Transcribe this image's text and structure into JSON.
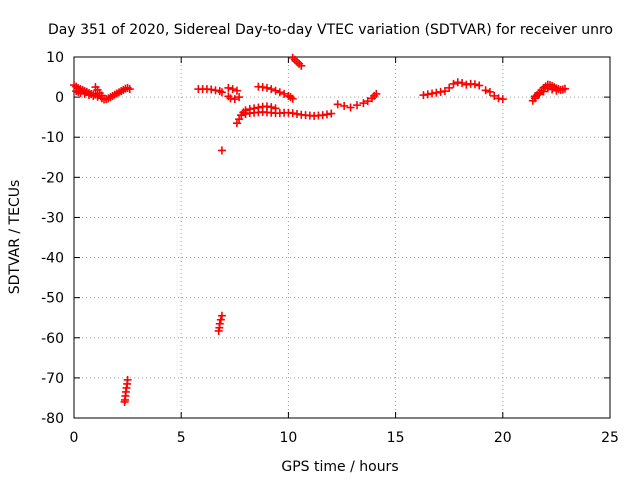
{
  "chart_data": {
    "type": "scatter",
    "title": "Day 351 of 2020, Sidereal Day-to-day VTEC variation (SDTVAR) for receiver unro",
    "xlabel": "GPS time / hours",
    "ylabel": "SDTVAR / TECUs",
    "xlim": [
      0,
      25
    ],
    "ylim": [
      -80,
      10
    ],
    "xticks": [
      0,
      5,
      10,
      15,
      20,
      25
    ],
    "yticks": [
      -80,
      -70,
      -60,
      -50,
      -40,
      -30,
      -20,
      -10,
      0,
      10
    ],
    "grid": true,
    "marker": "plus",
    "marker_color": "#ff0000",
    "series": [
      {
        "name": "SDTVAR",
        "points": [
          [
            0.0,
            3.0
          ],
          [
            0.1,
            2.6
          ],
          [
            0.2,
            2.2
          ],
          [
            0.3,
            2.0
          ],
          [
            0.4,
            1.8
          ],
          [
            0.5,
            1.5
          ],
          [
            0.6,
            1.3
          ],
          [
            0.7,
            1.0
          ],
          [
            0.8,
            0.8
          ],
          [
            0.9,
            0.7
          ],
          [
            1.0,
            0.6
          ],
          [
            0.1,
            1.5
          ],
          [
            0.2,
            1.3
          ],
          [
            0.3,
            1.0
          ],
          [
            0.5,
            0.8
          ],
          [
            0.7,
            0.5
          ],
          [
            0.9,
            0.3
          ],
          [
            1.1,
            0.1
          ],
          [
            1.0,
            2.5
          ],
          [
            1.1,
            1.8
          ],
          [
            1.2,
            1.0
          ],
          [
            1.3,
            0.4
          ],
          [
            1.3,
            -0.3
          ],
          [
            1.4,
            -0.6
          ],
          [
            1.5,
            -0.5
          ],
          [
            1.6,
            -0.3
          ],
          [
            1.7,
            0.0
          ],
          [
            1.8,
            0.3
          ],
          [
            1.9,
            0.6
          ],
          [
            2.0,
            0.9
          ],
          [
            2.1,
            1.2
          ],
          [
            2.2,
            1.5
          ],
          [
            2.3,
            1.8
          ],
          [
            2.4,
            2.1
          ],
          [
            2.5,
            2.3
          ],
          [
            2.6,
            2.0
          ],
          [
            2.5,
            -70.5
          ],
          [
            2.48,
            -71.5
          ],
          [
            2.45,
            -72.5
          ],
          [
            2.42,
            -73.5
          ],
          [
            2.4,
            -74.5
          ],
          [
            2.38,
            -75.5
          ],
          [
            2.36,
            -76.0
          ],
          [
            5.8,
            2.0
          ],
          [
            6.0,
            2.0
          ],
          [
            6.2,
            2.0
          ],
          [
            6.4,
            1.9
          ],
          [
            6.6,
            1.7
          ],
          [
            6.8,
            1.5
          ],
          [
            6.9,
            1.2
          ],
          [
            6.9,
            -13.3
          ],
          [
            6.9,
            -54.5
          ],
          [
            6.85,
            -55.5
          ],
          [
            6.8,
            -56.5
          ],
          [
            6.78,
            -57.5
          ],
          [
            6.75,
            -58.3
          ],
          [
            7.2,
            2.3
          ],
          [
            7.4,
            2.0
          ],
          [
            7.6,
            1.6
          ],
          [
            7.2,
            0.2
          ],
          [
            7.3,
            -0.3
          ],
          [
            7.5,
            -0.5
          ],
          [
            7.7,
            0.0
          ],
          [
            7.6,
            -6.5
          ],
          [
            7.7,
            -5.5
          ],
          [
            7.8,
            -4.5
          ],
          [
            7.9,
            -3.8
          ],
          [
            8.0,
            -3.3
          ],
          [
            8.2,
            -3.0
          ],
          [
            8.4,
            -2.8
          ],
          [
            8.6,
            -2.6
          ],
          [
            8.8,
            -2.4
          ],
          [
            9.0,
            -2.3
          ],
          [
            9.2,
            -2.5
          ],
          [
            9.4,
            -2.8
          ],
          [
            7.8,
            -4.5
          ],
          [
            8.0,
            -4.2
          ],
          [
            8.2,
            -4.0
          ],
          [
            8.4,
            -3.9
          ],
          [
            8.6,
            -3.8
          ],
          [
            8.8,
            -3.7
          ],
          [
            9.0,
            -3.8
          ],
          [
            9.2,
            -3.9
          ],
          [
            9.4,
            -4.0
          ],
          [
            9.6,
            -4.0
          ],
          [
            9.8,
            -3.9
          ],
          [
            10.0,
            -3.9
          ],
          [
            10.2,
            -4.0
          ],
          [
            10.4,
            -4.2
          ],
          [
            10.6,
            -4.4
          ],
          [
            10.8,
            -4.5
          ],
          [
            11.0,
            -4.6
          ],
          [
            11.2,
            -4.7
          ],
          [
            11.4,
            -4.6
          ],
          [
            11.6,
            -4.5
          ],
          [
            11.8,
            -4.3
          ],
          [
            12.0,
            -4.1
          ],
          [
            8.6,
            2.6
          ],
          [
            8.8,
            2.5
          ],
          [
            9.0,
            2.3
          ],
          [
            9.2,
            2.0
          ],
          [
            9.4,
            1.6
          ],
          [
            9.6,
            1.2
          ],
          [
            9.8,
            0.8
          ],
          [
            10.0,
            0.3
          ],
          [
            10.1,
            0.0
          ],
          [
            10.2,
            -0.4
          ],
          [
            10.2,
            9.8
          ],
          [
            10.3,
            9.3
          ],
          [
            10.4,
            8.8
          ],
          [
            10.5,
            8.3
          ],
          [
            10.6,
            7.8
          ],
          [
            12.3,
            -1.8
          ],
          [
            12.6,
            -2.2
          ],
          [
            12.9,
            -2.6
          ],
          [
            13.2,
            -2.0
          ],
          [
            13.5,
            -1.5
          ],
          [
            13.7,
            -1.0
          ],
          [
            13.9,
            -0.3
          ],
          [
            14.0,
            0.3
          ],
          [
            14.1,
            0.8
          ],
          [
            16.3,
            0.5
          ],
          [
            16.5,
            0.7
          ],
          [
            16.7,
            0.9
          ],
          [
            16.9,
            1.1
          ],
          [
            17.1,
            1.3
          ],
          [
            17.3,
            1.5
          ],
          [
            17.5,
            2.3
          ],
          [
            17.7,
            3.3
          ],
          [
            17.9,
            3.7
          ],
          [
            18.1,
            3.5
          ],
          [
            18.3,
            3.1
          ],
          [
            18.5,
            3.3
          ],
          [
            18.7,
            3.2
          ],
          [
            18.9,
            2.9
          ],
          [
            19.2,
            1.7
          ],
          [
            19.4,
            1.3
          ],
          [
            19.6,
            0.3
          ],
          [
            19.8,
            -0.3
          ],
          [
            20.0,
            -0.5
          ],
          [
            21.4,
            -0.9
          ],
          [
            21.5,
            -0.3
          ],
          [
            21.6,
            0.5
          ],
          [
            21.7,
            1.1
          ],
          [
            21.8,
            1.7
          ],
          [
            21.9,
            2.3
          ],
          [
            22.0,
            2.7
          ],
          [
            22.1,
            3.1
          ],
          [
            22.2,
            3.0
          ],
          [
            22.3,
            2.8
          ],
          [
            22.4,
            2.5
          ],
          [
            22.5,
            2.2
          ],
          [
            22.6,
            2.0
          ],
          [
            22.7,
            1.8
          ],
          [
            22.8,
            1.9
          ],
          [
            22.9,
            2.1
          ],
          [
            21.5,
            0.2
          ],
          [
            21.7,
            0.7
          ],
          [
            21.9,
            1.4
          ],
          [
            22.1,
            2.2
          ],
          [
            22.3,
            1.9
          ],
          [
            22.5,
            1.6
          ]
        ]
      }
    ]
  }
}
